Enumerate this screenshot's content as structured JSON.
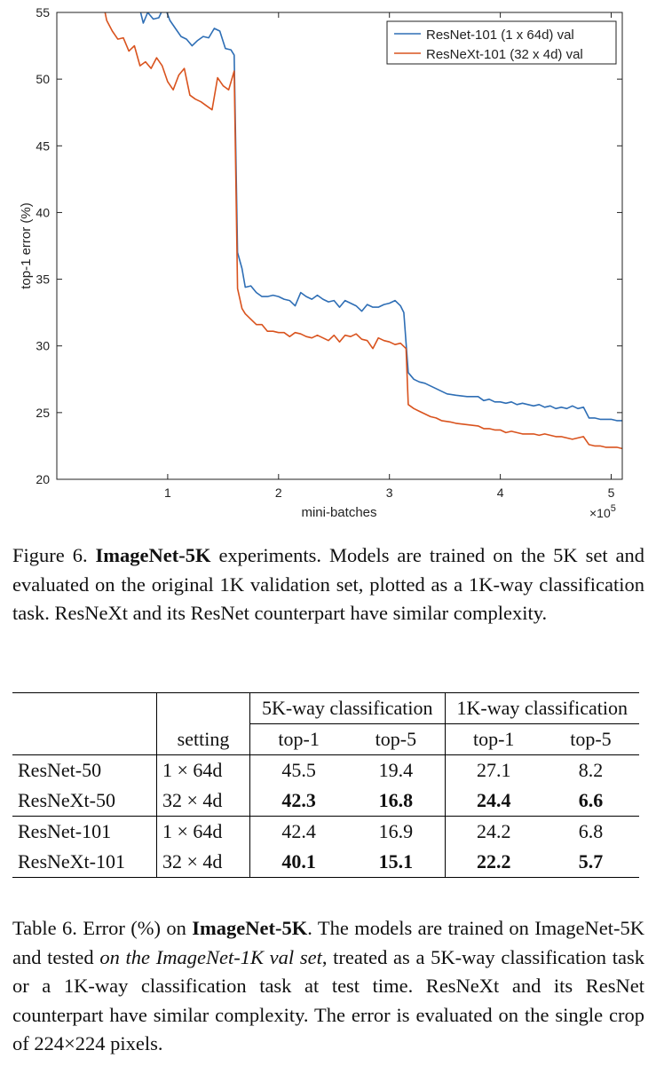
{
  "figure": {
    "caption_label": "Figure 6.",
    "caption_bold": "ImageNet-5K",
    "caption_rest": " experiments.  Models are trained on the 5K set and evaluated on the original 1K validation set, plotted as a 1K-way classification task. ResNeXt and its ResNet counterpart have similar complexity."
  },
  "chart_data": {
    "type": "line",
    "title": "",
    "xlabel": "mini-batches",
    "ylabel": "top-1 error (%)",
    "x_multiplier": "×10^5",
    "xlim": [
      0,
      5.1
    ],
    "ylim": [
      20,
      55
    ],
    "xticks": [
      1,
      2,
      3,
      4,
      5
    ],
    "yticks": [
      20,
      25,
      30,
      35,
      40,
      45,
      50,
      55
    ],
    "grid": false,
    "legend_position": "top-right",
    "series": [
      {
        "name": "ResNet-101 (1 x 64d) val",
        "color": "#2e6eb5",
        "points": [
          [
            0.5,
            56.8
          ],
          [
            0.6,
            55.6
          ],
          [
            0.7,
            56.2
          ],
          [
            0.75,
            55.2
          ],
          [
            0.78,
            54.2
          ],
          [
            0.82,
            55.0
          ],
          [
            0.87,
            54.5
          ],
          [
            0.92,
            54.6
          ],
          [
            0.97,
            55.5
          ],
          [
            1.02,
            54.4
          ],
          [
            1.07,
            53.8
          ],
          [
            1.12,
            53.2
          ],
          [
            1.17,
            53.0
          ],
          [
            1.22,
            52.5
          ],
          [
            1.27,
            52.9
          ],
          [
            1.32,
            53.2
          ],
          [
            1.37,
            53.1
          ],
          [
            1.42,
            53.8
          ],
          [
            1.47,
            53.6
          ],
          [
            1.52,
            52.3
          ],
          [
            1.57,
            52.2
          ],
          [
            1.6,
            51.8
          ],
          [
            1.63,
            37.0
          ],
          [
            1.67,
            35.8
          ],
          [
            1.7,
            34.4
          ],
          [
            1.75,
            34.5
          ],
          [
            1.8,
            34.0
          ],
          [
            1.85,
            33.7
          ],
          [
            1.9,
            33.7
          ],
          [
            1.95,
            33.8
          ],
          [
            2.0,
            33.7
          ],
          [
            2.05,
            33.5
          ],
          [
            2.1,
            33.4
          ],
          [
            2.15,
            33.0
          ],
          [
            2.2,
            34.0
          ],
          [
            2.25,
            33.7
          ],
          [
            2.3,
            33.5
          ],
          [
            2.35,
            33.8
          ],
          [
            2.4,
            33.5
          ],
          [
            2.45,
            33.3
          ],
          [
            2.5,
            33.4
          ],
          [
            2.55,
            32.9
          ],
          [
            2.6,
            33.4
          ],
          [
            2.65,
            33.2
          ],
          [
            2.7,
            33.0
          ],
          [
            2.75,
            32.6
          ],
          [
            2.8,
            33.1
          ],
          [
            2.85,
            32.9
          ],
          [
            2.9,
            32.9
          ],
          [
            2.95,
            33.1
          ],
          [
            3.0,
            33.2
          ],
          [
            3.05,
            33.4
          ],
          [
            3.1,
            33.0
          ],
          [
            3.13,
            32.5
          ],
          [
            3.17,
            28.0
          ],
          [
            3.22,
            27.5
          ],
          [
            3.27,
            27.3
          ],
          [
            3.32,
            27.2
          ],
          [
            3.37,
            27.0
          ],
          [
            3.42,
            26.8
          ],
          [
            3.47,
            26.6
          ],
          [
            3.52,
            26.4
          ],
          [
            3.6,
            26.3
          ],
          [
            3.7,
            26.2
          ],
          [
            3.8,
            26.2
          ],
          [
            3.85,
            25.9
          ],
          [
            3.9,
            26.0
          ],
          [
            3.95,
            25.8
          ],
          [
            4.0,
            25.8
          ],
          [
            4.05,
            25.7
          ],
          [
            4.1,
            25.8
          ],
          [
            4.15,
            25.6
          ],
          [
            4.2,
            25.7
          ],
          [
            4.25,
            25.6
          ],
          [
            4.3,
            25.5
          ],
          [
            4.35,
            25.6
          ],
          [
            4.4,
            25.4
          ],
          [
            4.45,
            25.5
          ],
          [
            4.5,
            25.3
          ],
          [
            4.55,
            25.4
          ],
          [
            4.6,
            25.3
          ],
          [
            4.65,
            25.5
          ],
          [
            4.7,
            25.3
          ],
          [
            4.75,
            25.4
          ],
          [
            4.8,
            24.6
          ],
          [
            4.85,
            24.6
          ],
          [
            4.9,
            24.5
          ],
          [
            4.95,
            24.5
          ],
          [
            5.0,
            24.5
          ],
          [
            5.05,
            24.4
          ],
          [
            5.1,
            24.4
          ]
        ]
      },
      {
        "name": "ResNeXt-101 (32 x 4d) val",
        "color": "#d9531e",
        "points": [
          [
            0.42,
            55.6
          ],
          [
            0.45,
            54.4
          ],
          [
            0.5,
            53.6
          ],
          [
            0.55,
            53.0
          ],
          [
            0.6,
            53.1
          ],
          [
            0.65,
            52.1
          ],
          [
            0.7,
            52.5
          ],
          [
            0.75,
            51.0
          ],
          [
            0.8,
            51.3
          ],
          [
            0.85,
            50.8
          ],
          [
            0.9,
            51.6
          ],
          [
            0.95,
            51.0
          ],
          [
            1.0,
            49.8
          ],
          [
            1.05,
            49.2
          ],
          [
            1.1,
            50.3
          ],
          [
            1.15,
            50.8
          ],
          [
            1.2,
            48.8
          ],
          [
            1.25,
            48.5
          ],
          [
            1.3,
            48.3
          ],
          [
            1.35,
            48.0
          ],
          [
            1.4,
            47.7
          ],
          [
            1.45,
            50.1
          ],
          [
            1.5,
            49.5
          ],
          [
            1.55,
            49.2
          ],
          [
            1.6,
            50.6
          ],
          [
            1.63,
            34.3
          ],
          [
            1.67,
            32.8
          ],
          [
            1.7,
            32.4
          ],
          [
            1.75,
            32.0
          ],
          [
            1.8,
            31.6
          ],
          [
            1.85,
            31.6
          ],
          [
            1.9,
            31.1
          ],
          [
            1.95,
            31.1
          ],
          [
            2.0,
            31.0
          ],
          [
            2.05,
            31.0
          ],
          [
            2.1,
            30.7
          ],
          [
            2.15,
            31.0
          ],
          [
            2.2,
            30.9
          ],
          [
            2.25,
            30.7
          ],
          [
            2.3,
            30.6
          ],
          [
            2.35,
            30.8
          ],
          [
            2.4,
            30.6
          ],
          [
            2.45,
            30.4
          ],
          [
            2.5,
            30.8
          ],
          [
            2.55,
            30.3
          ],
          [
            2.6,
            30.8
          ],
          [
            2.65,
            30.7
          ],
          [
            2.7,
            30.9
          ],
          [
            2.75,
            30.5
          ],
          [
            2.8,
            30.4
          ],
          [
            2.85,
            29.8
          ],
          [
            2.9,
            30.6
          ],
          [
            2.95,
            30.4
          ],
          [
            3.0,
            30.3
          ],
          [
            3.05,
            30.1
          ],
          [
            3.1,
            30.2
          ],
          [
            3.15,
            29.8
          ],
          [
            3.17,
            25.6
          ],
          [
            3.22,
            25.3
          ],
          [
            3.27,
            25.1
          ],
          [
            3.32,
            24.9
          ],
          [
            3.37,
            24.7
          ],
          [
            3.42,
            24.6
          ],
          [
            3.47,
            24.4
          ],
          [
            3.55,
            24.3
          ],
          [
            3.6,
            24.2
          ],
          [
            3.7,
            24.1
          ],
          [
            3.8,
            24.0
          ],
          [
            3.85,
            23.8
          ],
          [
            3.9,
            23.8
          ],
          [
            3.95,
            23.7
          ],
          [
            4.0,
            23.7
          ],
          [
            4.05,
            23.5
          ],
          [
            4.1,
            23.6
          ],
          [
            4.15,
            23.5
          ],
          [
            4.2,
            23.4
          ],
          [
            4.3,
            23.4
          ],
          [
            4.35,
            23.3
          ],
          [
            4.4,
            23.4
          ],
          [
            4.45,
            23.3
          ],
          [
            4.5,
            23.2
          ],
          [
            4.55,
            23.2
          ],
          [
            4.6,
            23.1
          ],
          [
            4.65,
            23.0
          ],
          [
            4.7,
            23.1
          ],
          [
            4.75,
            23.2
          ],
          [
            4.8,
            22.6
          ],
          [
            4.85,
            22.5
          ],
          [
            4.9,
            22.5
          ],
          [
            4.95,
            22.4
          ],
          [
            5.0,
            22.4
          ],
          [
            5.05,
            22.4
          ],
          [
            5.1,
            22.3
          ]
        ]
      }
    ]
  },
  "table": {
    "group_headers": [
      "5K-way classification",
      "1K-way classification"
    ],
    "setting_header": "setting",
    "col_headers": [
      "top-1",
      "top-5",
      "top-1",
      "top-5"
    ],
    "rows": [
      {
        "model": "ResNet-50",
        "setting": "1 × 64d",
        "values": [
          "45.5",
          "19.4",
          "27.1",
          "8.2"
        ],
        "bold": false
      },
      {
        "model": "ResNeXt-50",
        "setting": "32 × 4d",
        "values": [
          "42.3",
          "16.8",
          "24.4",
          "6.6"
        ],
        "bold": true
      },
      {
        "model": "ResNet-101",
        "setting": "1 × 64d",
        "values": [
          "42.4",
          "16.9",
          "24.2",
          "6.8"
        ],
        "bold": false
      },
      {
        "model": "ResNeXt-101",
        "setting": "32 × 4d",
        "values": [
          "40.1",
          "15.1",
          "22.2",
          "5.7"
        ],
        "bold": true
      }
    ]
  },
  "table_caption": {
    "label": "Table 6. Error (%) on ",
    "bold": "ImageNet-5K",
    "part2": ". The models are trained on ImageNet-5K and tested ",
    "italic": "on the ImageNet-1K val set",
    "part3": ", treated as a 5K-way classification task or a 1K-way classification task at test time. ResNeXt and its ResNet counterpart have similar complexity. The error is evaluated on the single crop of 224×224 pixels."
  }
}
